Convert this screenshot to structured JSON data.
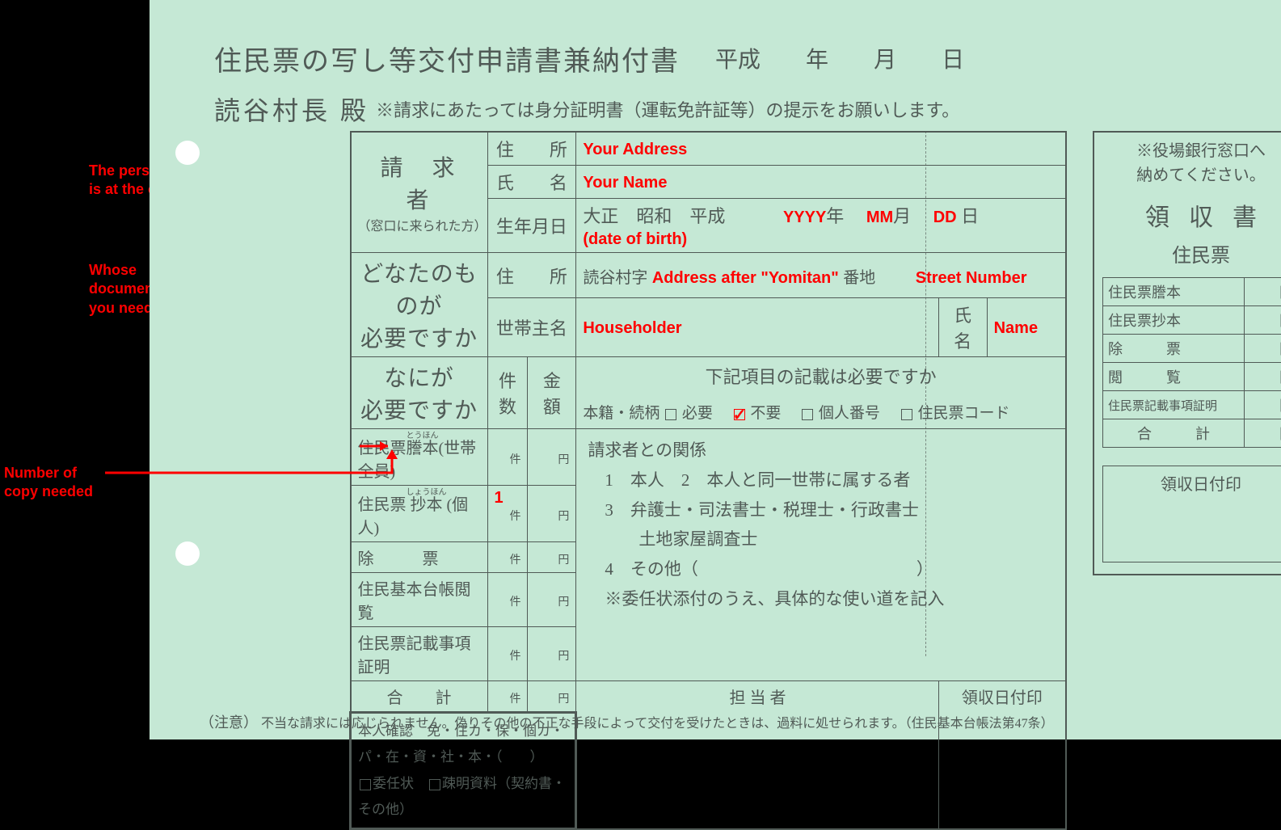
{
  "annotations": {
    "requester": "The person who\nis at the counter",
    "whose_doc": "Whose\ndocument do\nyou need?",
    "copies": "Number of\ncopy needed",
    "your_address": "Your Address",
    "your_name": "Your Name",
    "yyyy": "YYYY",
    "mm": "MM",
    "dd": "DD",
    "dob": "(date of birth)",
    "address_after": "Address after \"Yomitan\"",
    "street_number": "Street Number",
    "householder": "Householder",
    "name": "Name",
    "count_value": "1",
    "annot_color": "#ff0000",
    "annot_fontsize": 16
  },
  "header": {
    "title": "住民票の写し等交付申請書兼納付書",
    "date_era": "平成",
    "date_year_suffix": "年",
    "date_month_suffix": "月",
    "date_day_suffix": "日",
    "addressee": "読谷村長 殿",
    "id_note": "※請求にあたっては身分証明書（運転免許証等）の提示をお願いします。"
  },
  "requester_block": {
    "title": "請　求　者",
    "subtitle": "（窓口に来られた方）",
    "row_address": "住　　所",
    "row_name": "氏　　名",
    "row_dob": "生年月日",
    "era_taisho": "大正",
    "era_showa": "昭和",
    "era_heisei": "平成",
    "year_suffix": "年",
    "month_suffix": "月",
    "day_suffix": "日"
  },
  "whose_block": {
    "title_line1": "どなたのものが",
    "title_line2": "必要ですか",
    "row_address": "住　　所",
    "address_prefix": "読谷村字",
    "address_suffix": "番地",
    "row_householder": "世帯主名",
    "name_label": "氏名"
  },
  "what_block": {
    "title_line1": "なにが",
    "title_line2": "必要ですか",
    "col_count": "件数",
    "col_amount": "金額",
    "count_unit": "件",
    "amount_unit": "円",
    "rows": [
      {
        "label": "住民票謄本(世帯全員)",
        "ruby1": "とうほん"
      },
      {
        "label": "住民票抄本(個人)",
        "ruby2": "しょうほん"
      },
      {
        "label": "除　　　票"
      },
      {
        "label": "住民基本台帳閲覧"
      },
      {
        "label": "住民票記載事項証明"
      }
    ],
    "total_label": "合　　計"
  },
  "items_block": {
    "header": "下記項目の記載は必要ですか",
    "honseki": "本籍・続柄",
    "need": "必要",
    "noneed": "不要",
    "mynumber": "個人番号",
    "juminhyo_code": "住民票コード"
  },
  "relation_block": {
    "title": "請求者との関係",
    "r1_num": "1",
    "r1": "本人",
    "r2_num": "2",
    "r2": "本人と同一世帯に属する者",
    "r3_num": "3",
    "r3_line1": "弁護士・司法書士・税理士・行政書士",
    "r3_line2": "土地家屋調査士",
    "r4_num": "4",
    "r4": "その他（",
    "r4_close": "）",
    "note": "※委任状添付のうえ、具体的な使い道を記入"
  },
  "bottom_boxes": {
    "tantou": "担 当 者",
    "stamp": "領収日付印"
  },
  "verify_box": {
    "line1": "本人確認　免・住カ・保・個カ・パ・在・資・社・本・（　　）",
    "line2_item1": "委任状",
    "line2_item2": "疎明資料（契約書・その他）"
  },
  "footer": {
    "prefix": "（注意）",
    "text": "不当な請求には応じられません。偽りその他の不正な手段によって交付を受けたときは、過料に処せられます。（住民基本台帳法第47条）"
  },
  "receipt": {
    "note_line1": "※役場銀行窓口へ",
    "note_line2": "納めてください。",
    "title": "領収書",
    "subtitle": "住民票",
    "yen": "円",
    "rows": [
      "住民票謄本",
      "住民票抄本",
      "除　　　票",
      "閲　　　覧",
      "住民票記載事項証明",
      "合　　　計"
    ],
    "stamp_label": "領収日付印"
  },
  "style": {
    "background_color": "#c5e8d5",
    "border_color": "#505a56",
    "text_color": "#505a56"
  }
}
